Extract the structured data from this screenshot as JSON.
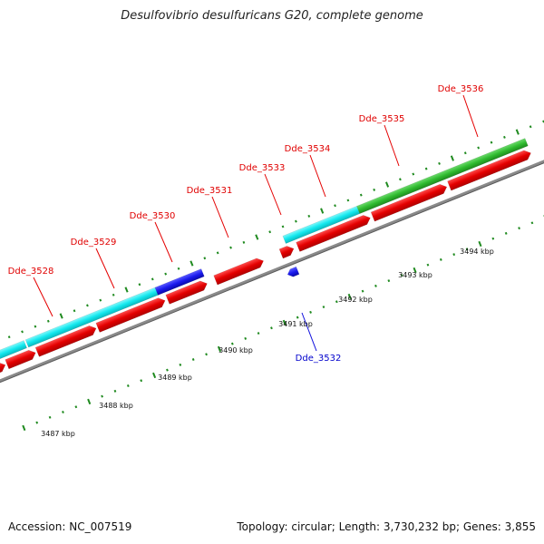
{
  "title": "Desulfovibrio desulfuricans G20, complete genome",
  "footer": {
    "accession": "Accession: NC_007519",
    "summary": "Topology: circular; Length: 3,730,232 bp; Genes: 3,855"
  },
  "colors": {
    "cds_forward": "#e40000",
    "cds_reverse": "#1010dd",
    "cog_cyan": "#12e8ee",
    "cog_green": "#2fbb2f",
    "cog_blue": "#1a1aee",
    "backbone": "#8a8a8a",
    "tick": "#1f8a1f"
  },
  "kbp_labels": [
    "3487 kbp",
    "3488 kbp",
    "3489 kbp",
    "3490 kbp",
    "3491 kbp",
    "3492 kbp",
    "3493 kbp",
    "3494 kbp"
  ],
  "gene_labels_forward": [
    "Dde_3528",
    "Dde_3529",
    "Dde_3530",
    "Dde_3531",
    "Dde_3533",
    "Dde_3534",
    "Dde_3535",
    "Dde_3536"
  ],
  "gene_labels_reverse": [
    "Dde_3532"
  ]
}
